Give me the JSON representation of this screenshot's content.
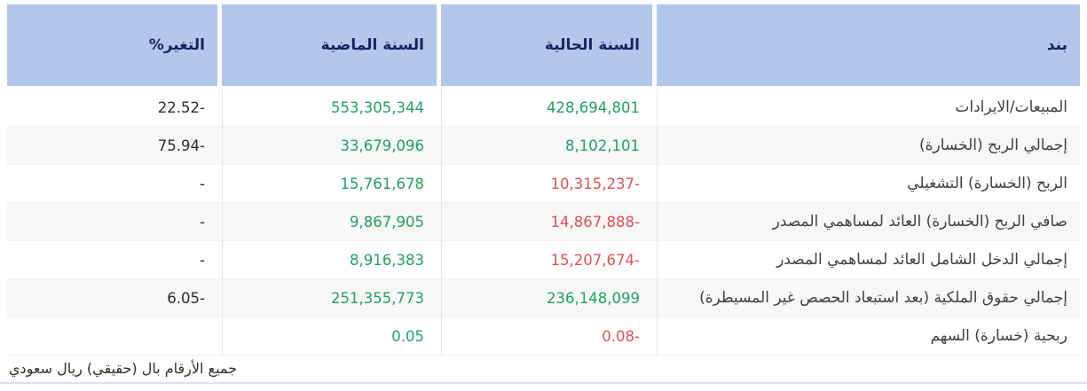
{
  "table": {
    "columns": [
      {
        "key": "item",
        "label": "بند"
      },
      {
        "key": "current",
        "label": "السنة الحالية"
      },
      {
        "key": "previous",
        "label": "السنة الماضية"
      },
      {
        "key": "change",
        "label": "التغير%"
      }
    ],
    "rows": [
      {
        "item": "المبيعات/الايرادات",
        "current": "428,694,801",
        "current_state": "positive",
        "previous": "553,305,344",
        "previous_state": "positive",
        "change": "22.52-"
      },
      {
        "item": "إجمالي الربح (الخسارة)",
        "current": "8,102,101",
        "current_state": "positive",
        "previous": "33,679,096",
        "previous_state": "positive",
        "change": "75.94-"
      },
      {
        "item": "الربح (الخسارة) التشغيلي",
        "current": "10,315,237-",
        "current_state": "negative",
        "previous": "15,761,678",
        "previous_state": "positive",
        "change": "-"
      },
      {
        "item": "صافي الربح (الخسارة) العائد لمساهمي المصدر",
        "current": "14,867,888-",
        "current_state": "negative",
        "previous": "9,867,905",
        "previous_state": "positive",
        "change": "-"
      },
      {
        "item": "إجمالي الدخل الشامل العائد لمساهمي المصدر",
        "current": "15,207,674-",
        "current_state": "negative",
        "previous": "8,916,383",
        "previous_state": "positive",
        "change": "-"
      },
      {
        "item": "إجمالي حقوق الملكية (بعد استبعاد الحصص غير المسيطرة)",
        "current": "236,148,099",
        "current_state": "positive",
        "previous": "251,355,773",
        "previous_state": "positive",
        "change": "6.05-"
      },
      {
        "item": "ربحية (خسارة) السهم",
        "current": "0.08-",
        "current_state": "negative",
        "previous": "0.05",
        "previous_state": "positive",
        "change": ""
      }
    ],
    "footnote": "جميع الأرقام بال (حقيقي) ريال سعودي"
  },
  "colors": {
    "header_bg": "#b3c6ec",
    "header_text": "#14245c",
    "positive": "#21a15f",
    "negative": "#e05255",
    "stripe": "#f7f7f7",
    "grid": "#e4e4e4",
    "label_text": "#3f3f3f"
  }
}
